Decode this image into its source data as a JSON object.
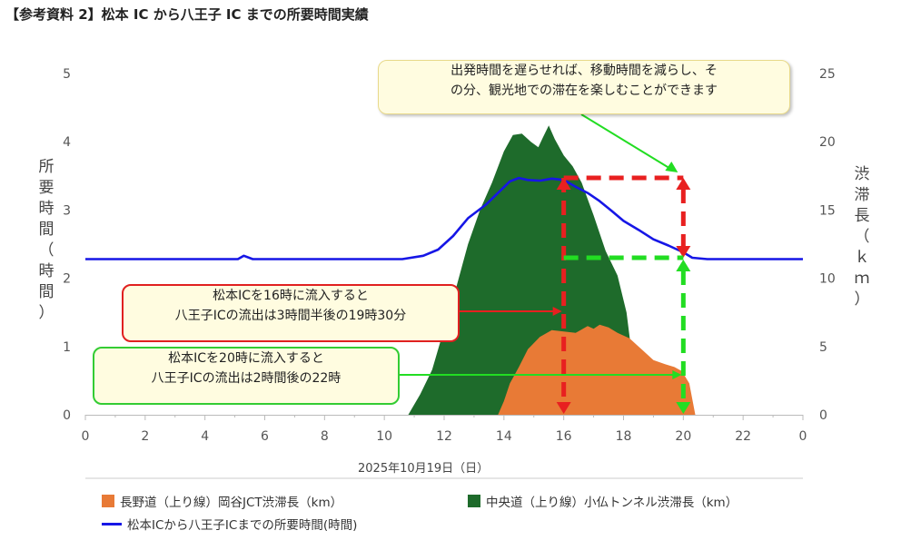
{
  "title": "【参考資料 2】松本 IC から八王子 IC までの所要時間実績",
  "annotations": {
    "main": [
      "出発時間を遅らせれば、移動時間を減らし、そ",
      "の分、観光地での滞在を楽しむことができます"
    ],
    "case16": [
      "松本ICを16時に流入すると",
      "八王子ICの流出は3時間半後の19時30分"
    ],
    "case20": [
      "松本ICを20時に流入すると",
      "八王子ICの流出は2時間後の22時"
    ]
  },
  "legend": {
    "orange": "長野道（上り線）岡谷JCT渋滞長（km）",
    "green": "中央道（上り線）小仏トンネル渋滞長（km）",
    "blue": "松本ICから八王子ICまでの所要時間(時間)"
  },
  "colors": {
    "orange": "#e87a36",
    "green": "#1e6b2b",
    "blue": "#1616e6",
    "red_arrow": "#e82020",
    "green_arrow": "#22dd22"
  },
  "chart_data": {
    "type": "area",
    "xlabel": "2025年10月19日（日）",
    "ylabel": [
      "所",
      "要",
      "時",
      "間",
      "（",
      "時",
      "間",
      "）"
    ],
    "ylabel_right": [
      "渋",
      "滞",
      "長",
      "（",
      "ｋ",
      "ｍ",
      "）"
    ],
    "xlim": [
      0,
      24
    ],
    "ylim": [
      0,
      5
    ],
    "ylim_right": [
      0,
      25
    ],
    "x_ticks": [
      "0",
      "2",
      "4",
      "6",
      "8",
      "10",
      "12",
      "14",
      "16",
      "18",
      "20",
      "22",
      "0"
    ],
    "y_ticks": [
      "0",
      "1",
      "2",
      "3",
      "4",
      "5"
    ],
    "y_ticks_right": [
      "0",
      "5",
      "10",
      "15",
      "20",
      "25"
    ],
    "grid": false,
    "series": [
      {
        "name": "中央道（上り線）小仏トンネル渋滞長（km）",
        "axis": "right",
        "kind": "area",
        "points": [
          [
            10.8,
            0
          ],
          [
            11.2,
            1.5
          ],
          [
            11.6,
            3.3
          ],
          [
            12.0,
            6.3
          ],
          [
            12.4,
            9.3
          ],
          [
            12.8,
            12.5
          ],
          [
            13.2,
            15.0
          ],
          [
            13.6,
            17.0
          ],
          [
            14.0,
            19.3
          ],
          [
            14.3,
            20.5
          ],
          [
            14.6,
            20.6
          ],
          [
            14.9,
            20.0
          ],
          [
            15.15,
            19.6
          ],
          [
            15.3,
            20.3
          ],
          [
            15.5,
            21.2
          ],
          [
            15.7,
            20.2
          ],
          [
            16.0,
            19.0
          ],
          [
            16.3,
            18.2
          ],
          [
            16.6,
            17.0
          ],
          [
            17.0,
            14.6
          ],
          [
            17.4,
            12.0
          ],
          [
            17.8,
            10.2
          ],
          [
            18.1,
            7.5
          ],
          [
            18.3,
            4.0
          ],
          [
            18.4,
            0
          ]
        ]
      },
      {
        "name": "長野道（上り線）岡谷JCT渋滞長（km）",
        "axis": "right",
        "kind": "area",
        "points": [
          [
            13.8,
            0
          ],
          [
            14.0,
            1.0
          ],
          [
            14.2,
            2.3
          ],
          [
            14.5,
            3.5
          ],
          [
            14.8,
            4.8
          ],
          [
            15.2,
            5.7
          ],
          [
            15.6,
            6.2
          ],
          [
            16.0,
            6.1
          ],
          [
            16.4,
            6.0
          ],
          [
            16.8,
            6.5
          ],
          [
            17.0,
            6.3
          ],
          [
            17.2,
            6.6
          ],
          [
            17.5,
            6.4
          ],
          [
            17.8,
            6.0
          ],
          [
            18.2,
            5.6
          ],
          [
            18.6,
            4.8
          ],
          [
            19.0,
            4.0
          ],
          [
            19.4,
            3.7
          ],
          [
            19.7,
            3.5
          ],
          [
            19.95,
            3.2
          ],
          [
            20.2,
            2.3
          ],
          [
            20.4,
            0
          ]
        ]
      },
      {
        "name": "松本ICから八王子ICまでの所要時間(時間)",
        "axis": "left",
        "kind": "line",
        "points": [
          [
            0,
            2.28
          ],
          [
            5.1,
            2.28
          ],
          [
            5.3,
            2.33
          ],
          [
            5.6,
            2.28
          ],
          [
            10.6,
            2.28
          ],
          [
            11.3,
            2.33
          ],
          [
            11.8,
            2.42
          ],
          [
            12.3,
            2.62
          ],
          [
            12.8,
            2.88
          ],
          [
            13.4,
            3.08
          ],
          [
            13.8,
            3.25
          ],
          [
            14.2,
            3.42
          ],
          [
            14.5,
            3.47
          ],
          [
            14.8,
            3.44
          ],
          [
            15.2,
            3.43
          ],
          [
            15.6,
            3.46
          ],
          [
            16.0,
            3.44
          ],
          [
            16.4,
            3.34
          ],
          [
            16.8,
            3.25
          ],
          [
            17.2,
            3.13
          ],
          [
            17.6,
            2.99
          ],
          [
            18.0,
            2.84
          ],
          [
            18.5,
            2.71
          ],
          [
            19.0,
            2.57
          ],
          [
            19.5,
            2.48
          ],
          [
            20.0,
            2.38
          ],
          [
            20.3,
            2.3
          ],
          [
            20.8,
            2.28
          ],
          [
            24,
            2.28
          ]
        ]
      }
    ]
  }
}
